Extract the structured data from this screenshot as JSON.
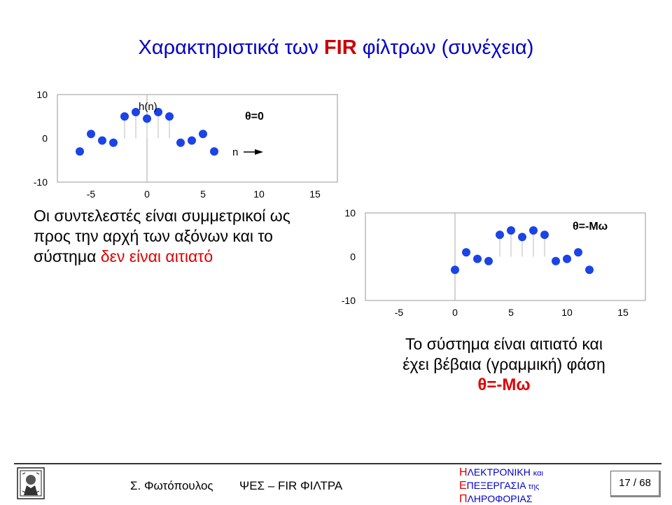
{
  "slide": {
    "title_pre": "Χαρακτηριστικά των ",
    "title_fir": "FIR",
    "title_post": " φίλτρων (συνέχεια)"
  },
  "left_text": {
    "line1": "Οι συντελεστές είναι συμμετρικοί ως",
    "line2": "προς την αρχή των αξόνων και το",
    "line3_pre": "σύστημα ",
    "line3_red": "δεν είναι αιτιατό"
  },
  "right_text": {
    "line1": "Το σύστημα είναι αιτιατό και",
    "line2": "έχει βέβαια (γραμμική) φάση",
    "line3": "θ=-Μω"
  },
  "chart_data": [
    {
      "type": "scatter",
      "style": "stem",
      "annotations": [
        "h(n)",
        "θ=0",
        "n"
      ],
      "xticks": [
        "-5",
        "0",
        "5",
        "10",
        "15"
      ],
      "yticks": [
        "10",
        "0",
        "-10"
      ],
      "xlim": [
        -8,
        17
      ],
      "ylim": [
        -10,
        10
      ],
      "marker_color": "#1a44e6",
      "x": [
        -6,
        -5,
        -4,
        -3,
        -2,
        -1,
        0,
        1,
        2,
        3,
        4,
        5,
        6
      ],
      "y": [
        -3,
        1,
        -0.5,
        -1,
        5,
        6,
        4.5,
        6,
        5,
        -1,
        -0.5,
        1,
        -3
      ]
    },
    {
      "type": "scatter",
      "style": "stem",
      "annotations": [
        "θ=-Μω"
      ],
      "xticks": [
        "-5",
        "0",
        "5",
        "10",
        "15"
      ],
      "yticks": [
        "10",
        "0",
        "-10"
      ],
      "xlim": [
        -8,
        17
      ],
      "ylim": [
        -10,
        10
      ],
      "marker_color": "#1a44e6",
      "x": [
        0,
        1,
        2,
        3,
        4,
        5,
        6,
        7,
        8,
        9,
        10,
        11,
        12
      ],
      "y": [
        -3,
        1,
        -0.5,
        -1,
        5,
        6,
        4.5,
        6,
        5,
        -1,
        -0.5,
        1,
        -3
      ]
    }
  ],
  "footer": {
    "author": "Σ. Φωτόπουλος",
    "course": "ΨΕΣ – FIR ΦΙΛΤΡΑ",
    "dept1_cap": "Η",
    "dept1_rest": "ΛΕΚΤΡΟΝΙΚΗ ",
    "dept1_small": "και",
    "dept2_cap": "Ε",
    "dept2_rest": "ΠΕΞΕΡΓΑΣΙΑ ",
    "dept2_small": "της",
    "dept3_cap": "Π",
    "dept3_rest": "ΛΗΡΟΦΟΡΙΑΣ",
    "page": "17 / 68"
  }
}
